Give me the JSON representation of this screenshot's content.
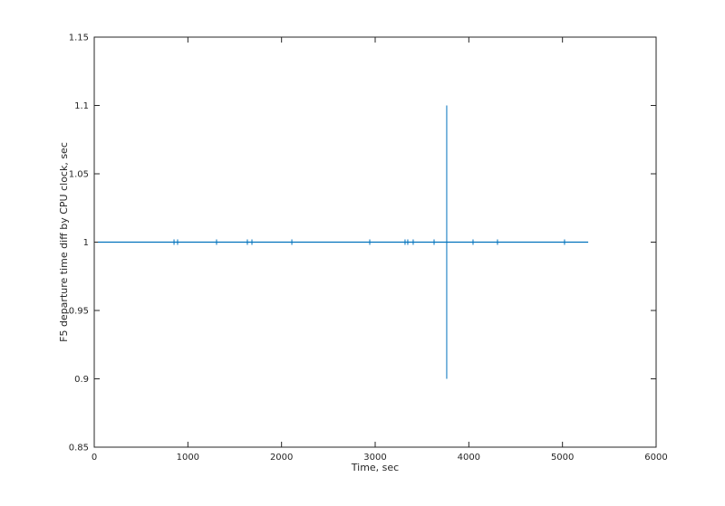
{
  "chart_data": {
    "type": "line",
    "title": "",
    "xlabel": "Time, sec",
    "ylabel": "F5 departure time diff by CPU clock, sec",
    "xlim": [
      0,
      6000
    ],
    "ylim": [
      0.85,
      1.15
    ],
    "xticks": [
      0,
      1000,
      2000,
      3000,
      4000,
      5000,
      6000
    ],
    "xtick_labels": [
      "0",
      "1000",
      "2000",
      "3000",
      "4000",
      "5000",
      "6000"
    ],
    "yticks": [
      0.85,
      0.9,
      0.95,
      1,
      1.05,
      1.1,
      1.15
    ],
    "ytick_labels": [
      "0.85",
      "0.9",
      "0.95",
      "1",
      "1.05",
      "1.1",
      "1.15"
    ],
    "grid": false,
    "series_color": "#0072BD",
    "baseline": {
      "x_start": 40,
      "x_end": 5275,
      "y": 1.0
    },
    "spikes": [
      {
        "x": 852,
        "low": 0.998,
        "high": 1.002
      },
      {
        "x": 890,
        "low": 0.998,
        "high": 1.002
      },
      {
        "x": 1306,
        "low": 0.999,
        "high": 1.001
      },
      {
        "x": 1635,
        "low": 0.999,
        "high": 1.001
      },
      {
        "x": 1684,
        "low": 0.999,
        "high": 1.001
      },
      {
        "x": 2110,
        "low": 0.998,
        "high": 1.002
      },
      {
        "x": 2942,
        "low": 0.999,
        "high": 1.001
      },
      {
        "x": 3319,
        "low": 0.999,
        "high": 1.001
      },
      {
        "x": 3348,
        "low": 0.999,
        "high": 1.001
      },
      {
        "x": 3406,
        "low": 0.999,
        "high": 1.001
      },
      {
        "x": 3629,
        "low": 0.998,
        "high": 1.002
      },
      {
        "x": 3764,
        "low": 0.9,
        "high": 1.1
      },
      {
        "x": 4045,
        "low": 0.999,
        "high": 1.001
      },
      {
        "x": 4306,
        "low": 0.999,
        "high": 1.001
      },
      {
        "x": 5022,
        "low": 0.999,
        "high": 1.001
      }
    ]
  }
}
